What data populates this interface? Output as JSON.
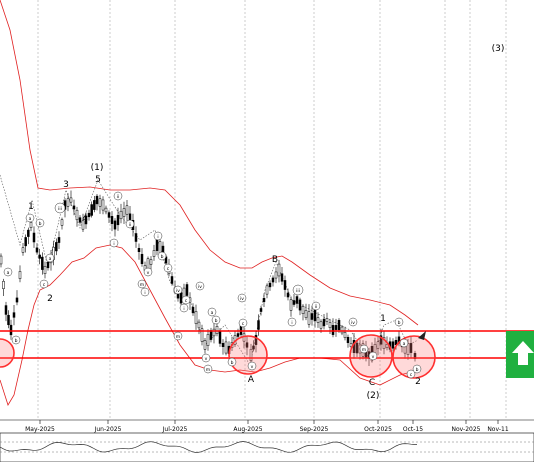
{
  "chart_data": {
    "type": "candlestick",
    "title": "",
    "x_axis": {
      "tick_labels": [
        "May-2025",
        "Jun-2025",
        "Jul-2025",
        "Aug-2025",
        "Sep-2025",
        "Oct-2025",
        "Oct-15",
        "Nov-2025",
        "Nov-11"
      ]
    },
    "grid": true,
    "horizontal_levels": [
      {
        "name": "resistance-level",
        "color": "#ff0000"
      },
      {
        "name": "support-level",
        "color": "#ff0000"
      }
    ],
    "wave_labels": [
      {
        "text": "1",
        "size": "main"
      },
      {
        "text": "2",
        "size": "main"
      },
      {
        "text": "3",
        "size": "main"
      },
      {
        "text": "4",
        "size": "main"
      },
      {
        "text": "5",
        "size": "main"
      },
      {
        "text": "(1)",
        "size": "main"
      },
      {
        "text": "B",
        "size": "main"
      },
      {
        "text": "A",
        "size": "main"
      },
      {
        "text": "C",
        "size": "main"
      },
      {
        "text": "(2)",
        "size": "main"
      },
      {
        "text": "1",
        "size": "main"
      },
      {
        "text": "2",
        "size": "main"
      },
      {
        "text": "(3)",
        "size": "main"
      }
    ],
    "minor_wave_labels": [
      "a",
      "b",
      "c",
      "i",
      "ii",
      "iii",
      "iv",
      "v",
      "m"
    ],
    "signal": {
      "direction": "up",
      "icon": "up-arrow-icon",
      "color": "#20b040"
    },
    "colors": {
      "bands": "#e02020",
      "levels": "#ff0000",
      "candles": "#000000",
      "signal": "#20b040"
    }
  }
}
